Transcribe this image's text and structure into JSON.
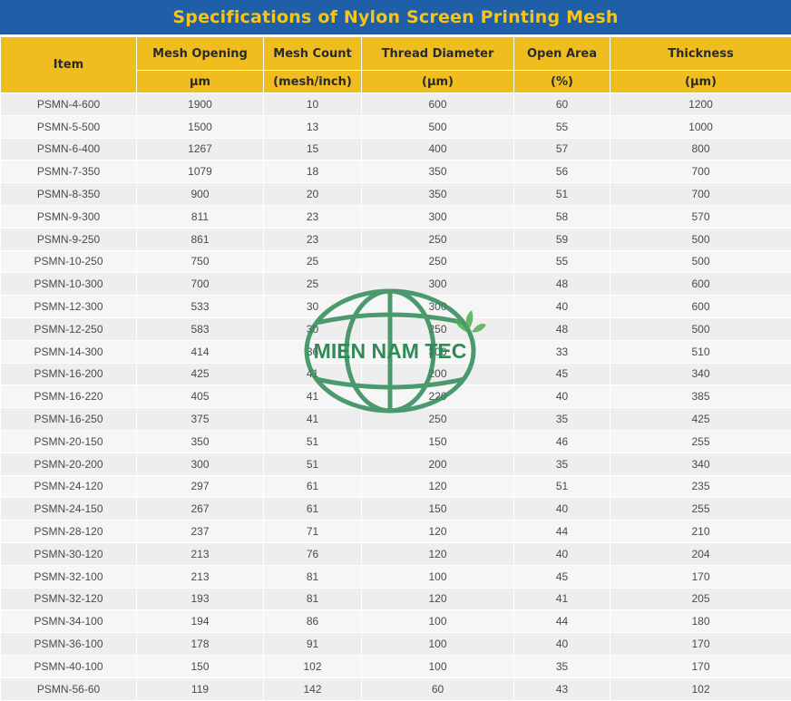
{
  "title": "Specifications of Nylon Screen Printing Mesh",
  "headers": {
    "item": "Item",
    "columns": [
      {
        "label": "Mesh Opening",
        "unit": "μm"
      },
      {
        "label": "Mesh Count",
        "unit": "(mesh/inch)"
      },
      {
        "label": "Thread Diameter",
        "unit": "(μm)"
      },
      {
        "label": "Open Area",
        "unit": "(%)"
      },
      {
        "label": "Thickness",
        "unit": "(μm)"
      }
    ]
  },
  "rows": [
    [
      "PSMN-4-600",
      "1900",
      "10",
      "600",
      "60",
      "1200"
    ],
    [
      "PSMN-5-500",
      "1500",
      "13",
      "500",
      "55",
      "1000"
    ],
    [
      "PSMN-6-400",
      "1267",
      "15",
      "400",
      "57",
      "800"
    ],
    [
      "PSMN-7-350",
      "1079",
      "18",
      "350",
      "56",
      "700"
    ],
    [
      "PSMN-8-350",
      "900",
      "20",
      "350",
      "51",
      "700"
    ],
    [
      "PSMN-9-300",
      "811",
      "23",
      "300",
      "58",
      "570"
    ],
    [
      "PSMN-9-250",
      "861",
      "23",
      "250",
      "59",
      "500"
    ],
    [
      "PSMN-10-250",
      "750",
      "25",
      "250",
      "55",
      "500"
    ],
    [
      "PSMN-10-300",
      "700",
      "25",
      "300",
      "48",
      "600"
    ],
    [
      "PSMN-12-300",
      "533",
      "30",
      "300",
      "40",
      "600"
    ],
    [
      "PSMN-12-250",
      "583",
      "30",
      "250",
      "48",
      "500"
    ],
    [
      "PSMN-14-300",
      "414",
      "36",
      "300",
      "33",
      "510"
    ],
    [
      "PSMN-16-200",
      "425",
      "41",
      "200",
      "45",
      "340"
    ],
    [
      "PSMN-16-220",
      "405",
      "41",
      "220",
      "40",
      "385"
    ],
    [
      "PSMN-16-250",
      "375",
      "41",
      "250",
      "35",
      "425"
    ],
    [
      "PSMN-20-150",
      "350",
      "51",
      "150",
      "46",
      "255"
    ],
    [
      "PSMN-20-200",
      "300",
      "51",
      "200",
      "35",
      "340"
    ],
    [
      "PSMN-24-120",
      "297",
      "61",
      "120",
      "51",
      "235"
    ],
    [
      "PSMN-24-150",
      "267",
      "61",
      "150",
      "40",
      "255"
    ],
    [
      "PSMN-28-120",
      "237",
      "71",
      "120",
      "44",
      "210"
    ],
    [
      "PSMN-30-120",
      "213",
      "76",
      "120",
      "40",
      "204"
    ],
    [
      "PSMN-32-100",
      "213",
      "81",
      "100",
      "45",
      "170"
    ],
    [
      "PSMN-32-120",
      "193",
      "81",
      "120",
      "41",
      "205"
    ],
    [
      "PSMN-34-100",
      "194",
      "86",
      "100",
      "44",
      "180"
    ],
    [
      "PSMN-36-100",
      "178",
      "91",
      "100",
      "40",
      "170"
    ],
    [
      "PSMN-40-100",
      "150",
      "102",
      "100",
      "35",
      "170"
    ],
    [
      "PSMN-56-60",
      "119",
      "142",
      "60",
      "43",
      "102"
    ]
  ],
  "watermark": {
    "text": "MIEN NAM TEC",
    "color": "#2e8b57",
    "icon": "globe-logo-icon"
  },
  "colors": {
    "title_bar": "#1f5fa8",
    "title_text": "#f5c518",
    "header_bg": "#f0bd1e"
  }
}
